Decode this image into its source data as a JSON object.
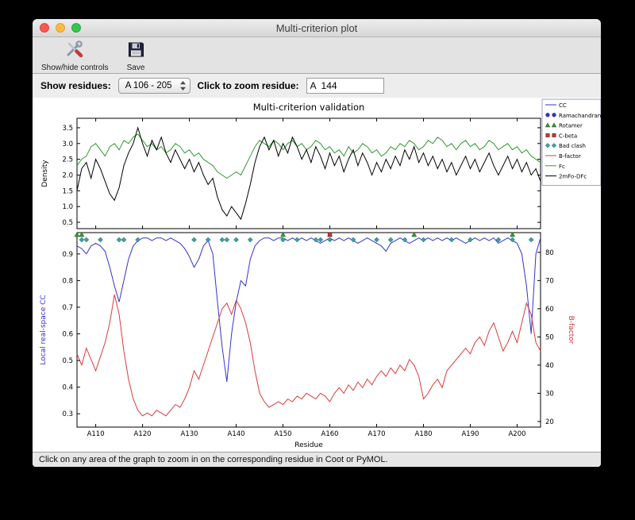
{
  "window": {
    "title": "Multi-criterion plot"
  },
  "toolbar": {
    "show_hide_label": "Show/hide controls",
    "save_label": "Save"
  },
  "controls": {
    "show_residues_label": "Show residues:",
    "residue_range_value": "A 106 - 205",
    "zoom_residue_label": "Click to zoom residue:",
    "zoom_residue_value": "A  144"
  },
  "status_bar": {
    "text": "Click on any area of the graph to zoom in on the corresponding residue in Coot or PyMOL."
  },
  "chart_data": {
    "type": "line",
    "title": "Multi-criterion validation",
    "xlabel": "Residue",
    "x_start": 106,
    "x_end": 205,
    "x_tick_values": [
      110,
      120,
      130,
      140,
      150,
      160,
      170,
      180,
      190,
      200
    ],
    "x_ticks": [
      "A110",
      "A120",
      "A130",
      "A140",
      "A150",
      "A160",
      "A170",
      "A180",
      "A190",
      "A200"
    ],
    "top_panel": {
      "ylabel": "Density",
      "ylim": [
        0.3,
        3.8
      ],
      "yticks": [
        0.5,
        1.0,
        1.5,
        2.0,
        2.5,
        3.0,
        3.5
      ],
      "series": [
        {
          "name": "Fc",
          "color": "#339933",
          "values": [
            2.3,
            2.5,
            2.6,
            2.9,
            3.0,
            2.8,
            2.6,
            2.9,
            3.0,
            2.8,
            3.1,
            3.0,
            3.2,
            3.3,
            3.1,
            2.9,
            3.0,
            2.8,
            2.9,
            2.7,
            2.8,
            3.0,
            2.9,
            2.7,
            2.8,
            2.6,
            2.7,
            2.5,
            2.4,
            2.3,
            2.1,
            2.0,
            1.9,
            2.0,
            2.1,
            2.0,
            2.3,
            2.6,
            2.9,
            3.1,
            3.0,
            2.9,
            3.1,
            3.0,
            2.8,
            3.0,
            3.1,
            2.9,
            3.0,
            2.8,
            2.9,
            3.1,
            3.0,
            2.8,
            2.9,
            2.7,
            2.8,
            2.6,
            2.9,
            2.7,
            2.8,
            3.0,
            2.9,
            2.7,
            2.8,
            2.6,
            2.7,
            2.9,
            2.8,
            3.0,
            2.9,
            3.1,
            3.0,
            2.8,
            2.9,
            3.1,
            3.0,
            3.2,
            3.1,
            2.9,
            3.0,
            2.8,
            3.0,
            3.1,
            2.9,
            3.0,
            2.8,
            2.9,
            3.1,
            3.0,
            2.8,
            2.9,
            3.0,
            2.8,
            2.9,
            2.7,
            2.8,
            2.6,
            2.5,
            2.4
          ]
        },
        {
          "name": "2mFo-DFc",
          "color": "#000000",
          "values": [
            1.5,
            2.2,
            2.4,
            1.9,
            2.5,
            2.2,
            1.8,
            1.4,
            1.2,
            1.6,
            2.3,
            2.7,
            3.0,
            3.5,
            3.0,
            2.6,
            3.1,
            2.8,
            3.2,
            2.7,
            2.4,
            2.8,
            2.5,
            2.2,
            2.5,
            2.1,
            2.4,
            2.0,
            1.7,
            1.9,
            1.3,
            0.9,
            0.7,
            1.0,
            0.8,
            0.6,
            1.1,
            1.7,
            2.4,
            2.9,
            3.2,
            2.8,
            3.1,
            2.6,
            3.0,
            2.7,
            3.2,
            2.9,
            2.5,
            2.8,
            2.4,
            2.9,
            2.6,
            2.2,
            2.7,
            2.3,
            2.6,
            2.1,
            2.5,
            2.8,
            2.3,
            2.7,
            2.4,
            2.0,
            2.4,
            2.1,
            2.5,
            2.2,
            2.6,
            2.3,
            2.8,
            2.5,
            2.9,
            2.4,
            2.7,
            2.3,
            2.6,
            2.2,
            2.5,
            2.1,
            2.4,
            2.0,
            2.3,
            2.6,
            2.2,
            2.5,
            2.1,
            2.4,
            2.7,
            2.3,
            2.0,
            2.3,
            2.6,
            2.2,
            2.5,
            2.1,
            2.4,
            2.0,
            2.2,
            1.8
          ]
        }
      ]
    },
    "bottom_panel": {
      "ylabel_left": "Local real-space CC",
      "ylabel_left_color": "#3333cc",
      "ylim_left": [
        0.25,
        0.98
      ],
      "yticks_left": [
        0.3,
        0.4,
        0.5,
        0.6,
        0.7,
        0.8,
        0.9
      ],
      "ylabel_right": "B-factor",
      "ylabel_right_color": "#cc3333",
      "ylim_right": [
        18,
        87
      ],
      "yticks_right": [
        20,
        30,
        40,
        50,
        60,
        70,
        80
      ],
      "series": [
        {
          "name": "CC",
          "axis": "left",
          "color": "#3333cc",
          "values": [
            0.93,
            0.92,
            0.9,
            0.93,
            0.94,
            0.93,
            0.91,
            0.85,
            0.78,
            0.72,
            0.8,
            0.88,
            0.93,
            0.95,
            0.96,
            0.96,
            0.95,
            0.96,
            0.96,
            0.95,
            0.96,
            0.95,
            0.94,
            0.92,
            0.89,
            0.85,
            0.88,
            0.93,
            0.95,
            0.9,
            0.72,
            0.55,
            0.42,
            0.6,
            0.72,
            0.8,
            0.78,
            0.88,
            0.93,
            0.95,
            0.96,
            0.96,
            0.95,
            0.96,
            0.96,
            0.95,
            0.96,
            0.95,
            0.96,
            0.95,
            0.96,
            0.95,
            0.94,
            0.95,
            0.96,
            0.95,
            0.96,
            0.95,
            0.96,
            0.95,
            0.94,
            0.95,
            0.96,
            0.95,
            0.94,
            0.93,
            0.91,
            0.94,
            0.95,
            0.96,
            0.95,
            0.94,
            0.95,
            0.96,
            0.95,
            0.96,
            0.95,
            0.96,
            0.95,
            0.96,
            0.95,
            0.96,
            0.95,
            0.94,
            0.95,
            0.96,
            0.95,
            0.96,
            0.95,
            0.96,
            0.94,
            0.95,
            0.96,
            0.95,
            0.94,
            0.9,
            0.78,
            0.6,
            0.9,
            0.96
          ]
        },
        {
          "name": "B-factor",
          "axis": "right",
          "color": "#dd3b3b",
          "values": [
            44,
            40,
            46,
            42,
            38,
            43,
            48,
            55,
            65,
            58,
            45,
            35,
            28,
            24,
            22,
            23,
            22,
            24,
            23,
            22,
            24,
            26,
            25,
            28,
            32,
            38,
            35,
            40,
            45,
            50,
            55,
            60,
            62,
            58,
            63,
            60,
            55,
            48,
            38,
            30,
            27,
            25,
            26,
            27,
            26,
            28,
            27,
            29,
            28,
            30,
            29,
            28,
            30,
            29,
            27,
            30,
            32,
            30,
            33,
            31,
            34,
            32,
            35,
            33,
            36,
            38,
            36,
            39,
            37,
            40,
            38,
            42,
            40,
            36,
            28,
            30,
            33,
            35,
            32,
            38,
            40,
            42,
            44,
            46,
            44,
            48,
            50,
            47,
            52,
            55,
            50,
            45,
            48,
            52,
            48,
            55,
            62,
            58,
            48,
            45
          ]
        }
      ],
      "markers": {
        "rotamer": {
          "shape": "triangle",
          "color": "#339933",
          "residues": [
            106,
            107,
            150,
            160,
            178,
            199
          ]
        },
        "cbeta": {
          "shape": "square",
          "color": "#cc3333",
          "residues": [
            160
          ]
        },
        "bad_clash": {
          "shape": "diamond",
          "color": "#3fa0a0",
          "residues": [
            107,
            108,
            111,
            115,
            116,
            119,
            131,
            134,
            137,
            138,
            140,
            143,
            150,
            153,
            157,
            158,
            160,
            165,
            170,
            173,
            176,
            180,
            186,
            190,
            196,
            199,
            203
          ]
        }
      }
    },
    "legend": [
      {
        "label": "CC",
        "type": "line",
        "color": "#3333cc"
      },
      {
        "label": "Ramachandran",
        "type": "circle",
        "color": "#3333cc"
      },
      {
        "label": "Rotamer",
        "type": "triangle",
        "color": "#339933"
      },
      {
        "label": "C-beta",
        "type": "square",
        "color": "#cc3333"
      },
      {
        "label": "Bad clash",
        "type": "diamond",
        "color": "#3fa0a0"
      },
      {
        "label": "B-factor",
        "type": "line",
        "color": "#dd3b3b"
      },
      {
        "label": "Fc",
        "type": "line",
        "color": "#339933"
      },
      {
        "label": "2mFo-DFc",
        "type": "line",
        "color": "#000000"
      }
    ]
  }
}
